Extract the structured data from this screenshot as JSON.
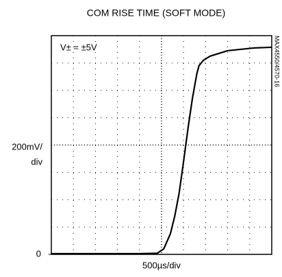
{
  "chart_data": {
    "type": "line",
    "title": "COM RISE TIME (SOFT MODE)",
    "y_label": [
      "200mV/",
      "div"
    ],
    "x_label": "500µs/div",
    "annotation": "V± = ±5V",
    "figure_id": "MAX4550/4570-16",
    "x": [
      0,
      500,
      1000,
      1500,
      2000,
      2400,
      2550,
      2700,
      2800,
      2900,
      3000,
      3100,
      3200,
      3300,
      3350,
      3450,
      3600,
      3800,
      4000,
      4300,
      4600,
      5000
    ],
    "series": [
      {
        "name": "COM",
        "color": "#000000",
        "values": [
          5,
          5,
          5,
          5,
          5,
          8,
          40,
          150,
          280,
          450,
          680,
          920,
          1140,
          1320,
          1380,
          1420,
          1450,
          1470,
          1490,
          1500,
          1510,
          1515
        ]
      }
    ],
    "xlim": [
      0,
      5000
    ],
    "ylim": [
      0,
      1600
    ],
    "yticks": [
      0
    ],
    "xgrid": [
      500,
      1000,
      1500,
      2000,
      2500,
      3000,
      3500,
      4000,
      4500
    ],
    "ygrid": [
      200,
      400,
      600,
      800,
      1000,
      1200,
      1400
    ],
    "grid": true
  }
}
